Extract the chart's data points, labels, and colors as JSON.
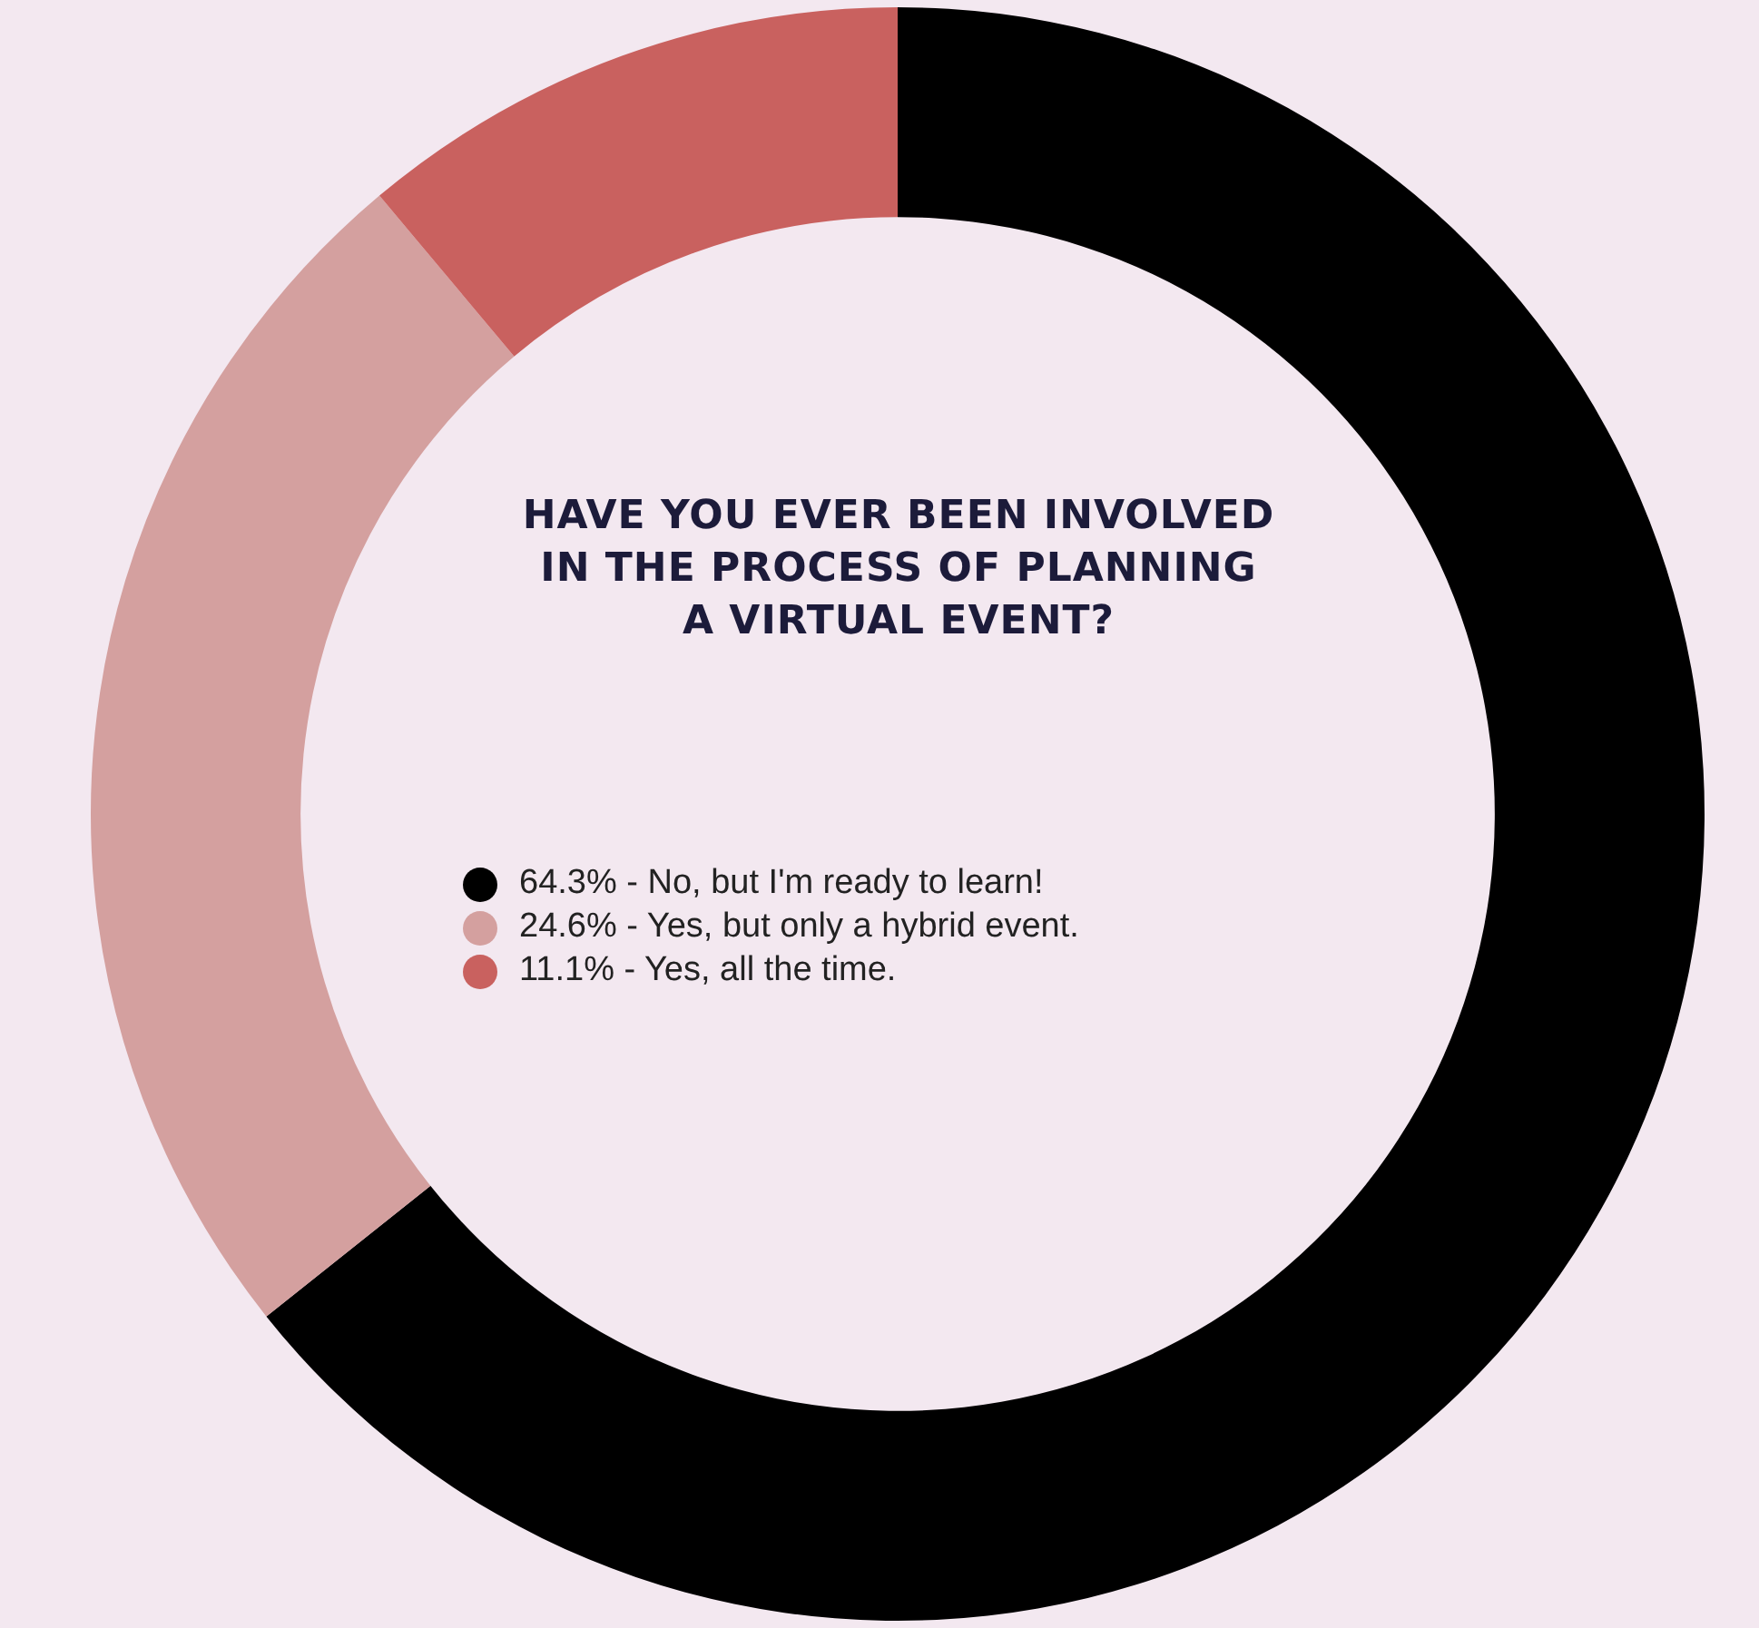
{
  "chart_data": {
    "type": "donut",
    "title": "HAVE YOU EVER BEEN INVOLVED IN THE PROCESS OF PLANNING A VIRTUAL EVENT?",
    "categories": [
      "No, but I'm ready to learn!",
      "Yes, but only a hybrid event.",
      "Yes, all the time."
    ],
    "values": [
      64.3,
      24.6,
      11.1
    ],
    "value_labels": [
      "64.3%",
      "24.6%",
      "11.1%"
    ],
    "colors": [
      "#000000",
      "#d4a09f",
      "#c9615f"
    ],
    "legend": "center"
  }
}
